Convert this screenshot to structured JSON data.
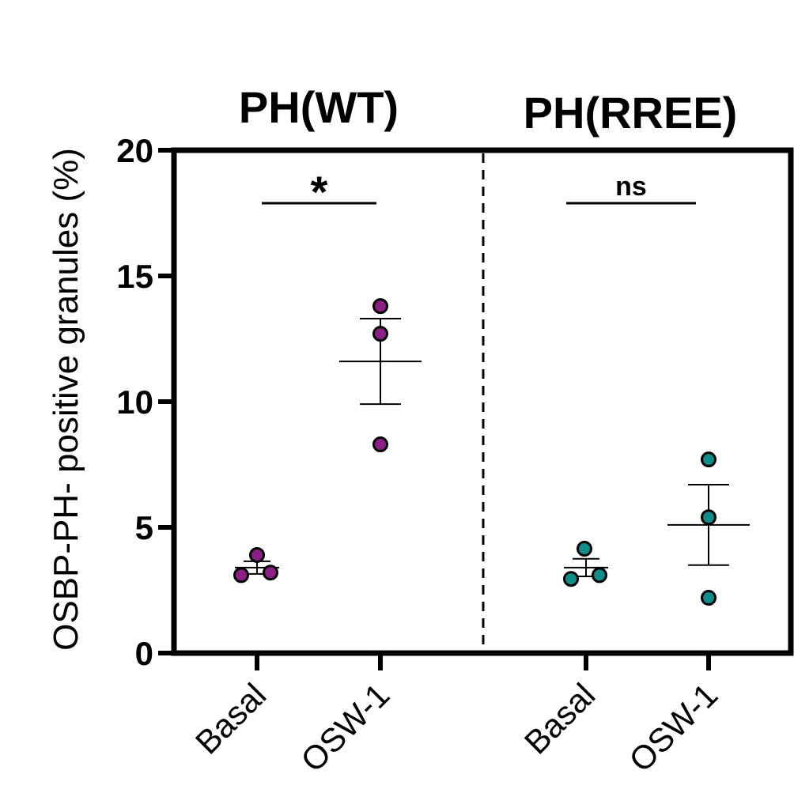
{
  "chart_data": {
    "type": "scatter",
    "ylabel": "OSBP-PH- positive granules (%)",
    "ylim": [
      0,
      20
    ],
    "yticks": [
      "0",
      "5",
      "10",
      "15",
      "20"
    ],
    "panels": [
      {
        "title": "PH(WT)",
        "color": "#8b1f86",
        "categories": [
          "Basal",
          "OSW-1"
        ],
        "groups": [
          {
            "category": "Basal",
            "points": [
              3.1,
              3.2,
              3.9
            ],
            "mean": 3.4,
            "sem_low": 3.15,
            "sem_high": 3.65
          },
          {
            "category": "OSW-1",
            "points": [
              8.3,
              12.7,
              13.8
            ],
            "mean": 11.6,
            "sem_low": 9.9,
            "sem_high": 13.3
          }
        ],
        "significance": "*"
      },
      {
        "title": "PH(RREE)",
        "color": "#0f8d89",
        "categories": [
          "Basal",
          "OSW-1"
        ],
        "groups": [
          {
            "category": "Basal",
            "points": [
              2.95,
              3.1,
              4.15
            ],
            "mean": 3.4,
            "sem_low": 3.05,
            "sem_high": 3.75
          },
          {
            "category": "OSW-1",
            "points": [
              2.2,
              5.4,
              7.7
            ],
            "mean": 5.1,
            "sem_low": 3.5,
            "sem_high": 6.7
          }
        ],
        "significance": "ns"
      }
    ],
    "grid": false,
    "legend": "none"
  }
}
